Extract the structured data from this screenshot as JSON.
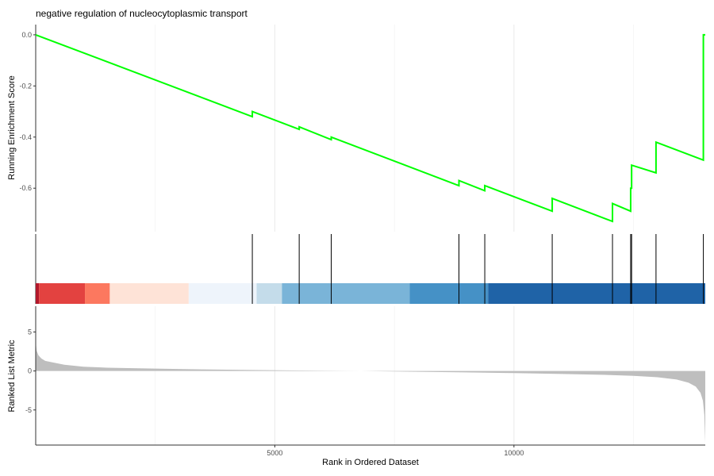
{
  "chart_data": {
    "type": "line",
    "title": "negative regulation of nucleocytoplasmic transport",
    "xlabel": "Rank in Ordered Dataset",
    "xlim": [
      1,
      14000
    ],
    "x_ticks": [
      5000,
      10000
    ],
    "grid": true,
    "panels": {
      "enrichment": {
        "ylabel": "Running Enrichment Score",
        "ylim": [
          -0.77,
          0.04
        ],
        "y_ticks": [
          0.0,
          -0.2,
          -0.4,
          -0.6
        ],
        "y_tick_labels": [
          "0.0",
          "-0.2",
          "-0.4",
          "-0.6"
        ],
        "line_color": "#00ff00",
        "running_score": {
          "x": [
            1,
            4530,
            4530,
            5510,
            5510,
            6180,
            6180,
            8850,
            8850,
            9390,
            9390,
            10800,
            10800,
            12060,
            12060,
            12440,
            12440,
            12460,
            12460,
            12970,
            12970,
            13960,
            13960,
            14000
          ],
          "y": [
            0.0,
            -0.32,
            -0.3,
            -0.37,
            -0.36,
            -0.41,
            -0.4,
            -0.59,
            -0.57,
            -0.61,
            -0.59,
            -0.69,
            -0.64,
            -0.73,
            -0.66,
            -0.69,
            -0.6,
            -0.6,
            -0.51,
            -0.54,
            -0.42,
            -0.49,
            0.0,
            0.0
          ]
        }
      },
      "hits": {
        "gene_ranks": [
          4530,
          5510,
          6180,
          8850,
          9390,
          10800,
          12060,
          12440,
          12460,
          12970,
          13960
        ],
        "color_bands": [
          {
            "from": 1,
            "to": 70,
            "color": "#b2182b"
          },
          {
            "from": 70,
            "to": 1030,
            "color": "#e34240"
          },
          {
            "from": 1030,
            "to": 1550,
            "color": "#fc785f"
          },
          {
            "from": 1550,
            "to": 3200,
            "color": "#fee3d7"
          },
          {
            "from": 3200,
            "to": 4620,
            "color": "#eef4fb"
          },
          {
            "from": 4620,
            "to": 5150,
            "color": "#c4dcea"
          },
          {
            "from": 5150,
            "to": 7820,
            "color": "#7ab4d8"
          },
          {
            "from": 7820,
            "to": 9460,
            "color": "#4591c6"
          },
          {
            "from": 9460,
            "to": 14000,
            "color": "#1f63a7"
          }
        ]
      },
      "ranked_metric": {
        "ylabel": "Ranked List Metric",
        "ylim": [
          -9.5,
          8.3
        ],
        "y_ticks": [
          5,
          0,
          -5
        ],
        "y_tick_labels": [
          "5",
          "0",
          "-5"
        ],
        "fill_color": "#bebebe",
        "profile": {
          "x": [
            1,
            20,
            60,
            120,
            200,
            350,
            600,
            1000,
            1500,
            2500,
            3500,
            4500,
            5500,
            6500,
            6800,
            7200,
            8000,
            9000,
            10000,
            11000,
            11800,
            12500,
            13000,
            13400,
            13650,
            13800,
            13900,
            13950,
            13980,
            14000
          ],
          "y": [
            3.8,
            2.6,
            2.0,
            1.6,
            1.3,
            1.1,
            0.8,
            0.55,
            0.42,
            0.3,
            0.2,
            0.12,
            0.06,
            0.01,
            0.0,
            -0.04,
            -0.1,
            -0.18,
            -0.27,
            -0.38,
            -0.48,
            -0.62,
            -0.8,
            -1.1,
            -1.5,
            -2.0,
            -2.8,
            -3.8,
            -5.6,
            -9.2
          ]
        }
      }
    }
  }
}
